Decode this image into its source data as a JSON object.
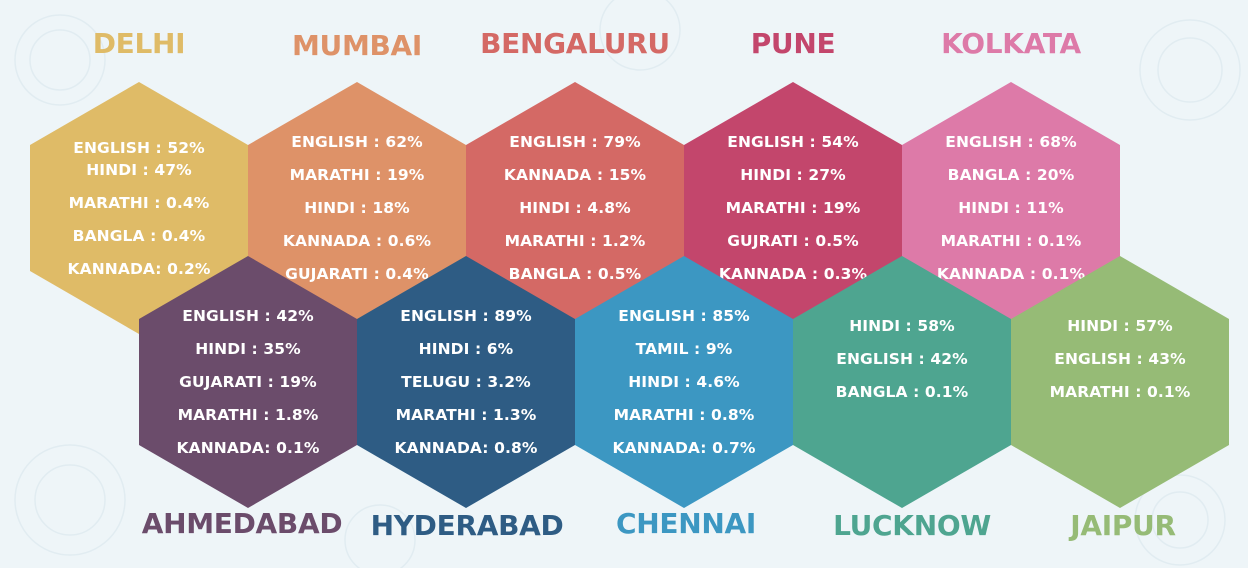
{
  "cities": [
    {
      "name": "DELHI",
      "color": "#dfbb67",
      "label_color": "#dfbb67",
      "stats": [
        "ENGLISH : 52%",
        "HINDI : 47%",
        "MARATHI : 0.4%",
        "BANGLA : 0.4%",
        "KANNADA: 0.2%"
      ]
    },
    {
      "name": "MUMBAI",
      "color": "#de9268",
      "label_color": "#de9268",
      "stats": [
        "ENGLISH : 62%",
        "MARATHI : 19%",
        "HINDI : 18%",
        "KANNADA : 0.6%",
        "GUJARATI : 0.4%"
      ]
    },
    {
      "name": "BENGALURU",
      "color": "#d46965",
      "label_color": "#d46965",
      "stats": [
        "ENGLISH : 79%",
        "KANNADA : 15%",
        "HINDI : 4.8%",
        "MARATHI : 1.2%",
        "BANGLA : 0.5%"
      ]
    },
    {
      "name": "PUNE",
      "color": "#c3466c",
      "label_color": "#c3466c",
      "stats": [
        "ENGLISH : 54%",
        "HINDI : 27%",
        "MARATHI : 19%",
        "GUJRATI : 0.5%",
        "KANNADA : 0.3%"
      ]
    },
    {
      "name": "KOLKATA",
      "color": "#dd7aa8",
      "label_color": "#dd7aa8",
      "stats": [
        "ENGLISH : 68%",
        "BANGLA : 20%",
        "HINDI : 11%",
        "MARATHI : 0.1%",
        "KANNADA : 0.1%"
      ]
    },
    {
      "name": "AHMEDABAD",
      "color": "#6b4c6b",
      "label_color": "#6b4c6b",
      "stats": [
        "ENGLISH : 42%",
        "HINDI : 35%",
        "GUJARATI : 19%",
        "MARATHI : 1.8%",
        "KANNADA: 0.1%"
      ]
    },
    {
      "name": "HYDERABAD",
      "color": "#2e5c84",
      "label_color": "#2e5c84",
      "stats": [
        "ENGLISH : 89%",
        "HINDI : 6%",
        "TELUGU : 3.2%",
        "MARATHI : 1.3%",
        "KANNADA: 0.8%"
      ]
    },
    {
      "name": "CHENNAI",
      "color": "#3c97c2",
      "label_color": "#3c97c2",
      "stats": [
        "ENGLISH : 85%",
        "TAMIL : 9%",
        "HINDI : 4.6%",
        "MARATHI : 0.8%",
        "KANNADA: 0.7%"
      ]
    },
    {
      "name": "LUCKNOW",
      "color": "#4ea590",
      "label_color": "#4ea590",
      "stats": [
        "HINDI : 58%",
        "ENGLISH : 42%",
        "BANGLA : 0.1%"
      ]
    },
    {
      "name": "JAIPUR",
      "color": "#96bb76",
      "label_color": "#96bb76",
      "stats": [
        "HINDI : 57%",
        "ENGLISH : 43%",
        "MARATHI : 0.1%"
      ]
    }
  ]
}
